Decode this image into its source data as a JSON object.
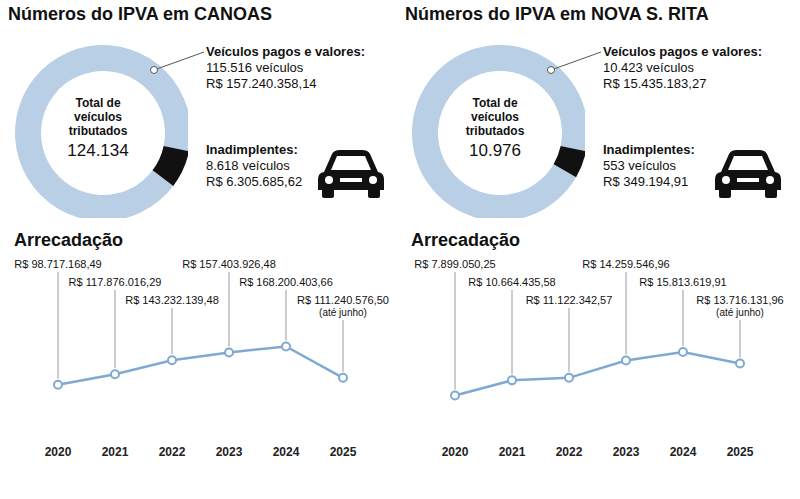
{
  "chart_data": [
    {
      "type": "donut",
      "title": "Números do IPVA em CANOAS",
      "categories": [
        "Veículos pagos e valores:",
        "Inadimplentes:"
      ],
      "values": [
        115516,
        8618
      ],
      "value_labels": [
        "115.516 veículos",
        "8.618 veículos"
      ],
      "amounts": [
        157240358.14,
        6305685.62
      ],
      "amount_labels": [
        "R$ 157.240.358,14",
        "R$ 6.305.685,62"
      ],
      "total": {
        "value": 124134,
        "label": "124.134",
        "text": "Total de veículos tributados"
      },
      "colors": [
        "#b9cfe5",
        "#111111"
      ]
    },
    {
      "type": "line",
      "title": "Arrecadação",
      "categories": [
        "2020",
        "2021",
        "2022",
        "2023",
        "2024",
        "2025"
      ],
      "values": [
        98717168.49,
        117876016.29,
        143232139.48,
        157403926.48,
        168200403.66,
        111240576.5
      ],
      "value_labels": [
        "R$ 98.717.168,49",
        "R$ 117.876.016,29",
        "R$ 143.232.139,48",
        "R$ 157.403.926,48",
        "R$ 168.200.403,66",
        "R$ 111.240.576,50"
      ],
      "annotations": [
        {
          "category": "2025",
          "text": "(até junho)"
        }
      ],
      "ylim": [
        0,
        200000000
      ],
      "tick_labels": "x",
      "data_labels": true,
      "grid": false,
      "color": "#7fa9d3",
      "marker": "circle"
    },
    {
      "type": "donut",
      "title": "Números do IPVA em NOVA S. RITA",
      "categories": [
        "Veículos pagos e valores:",
        "Inadimplentes:"
      ],
      "values": [
        10423,
        553
      ],
      "value_labels": [
        "10.423 veículos",
        "553 veículos"
      ],
      "amounts": [
        15435183.27,
        349194.91
      ],
      "amount_labels": [
        "R$ 15.435.183,27",
        "R$ 349.194,91"
      ],
      "total": {
        "value": 10976,
        "label": "10.976",
        "text": "Total de veículos tributados"
      },
      "colors": [
        "#b9cfe5",
        "#111111"
      ]
    },
    {
      "type": "line",
      "title": "Arrecadação",
      "categories": [
        "2020",
        "2021",
        "2022",
        "2023",
        "2024",
        "2025"
      ],
      "values": [
        7899050.25,
        10664435.58,
        11122342.57,
        14259546.96,
        15813619.91,
        13716131.96
      ],
      "value_labels": [
        "R$ 7.899.050,25",
        "R$ 10.664.435,58",
        "R$ 11.122.342,57",
        "R$ 14.259.546,96",
        "R$ 15.813.619,91",
        "R$ 13.716.131,96"
      ],
      "annotations": [
        {
          "category": "2025",
          "text": "(até junho)"
        }
      ],
      "ylim": [
        0,
        20000000
      ],
      "tick_labels": "x",
      "data_labels": true,
      "grid": false,
      "color": "#7fa9d3",
      "marker": "circle"
    }
  ]
}
